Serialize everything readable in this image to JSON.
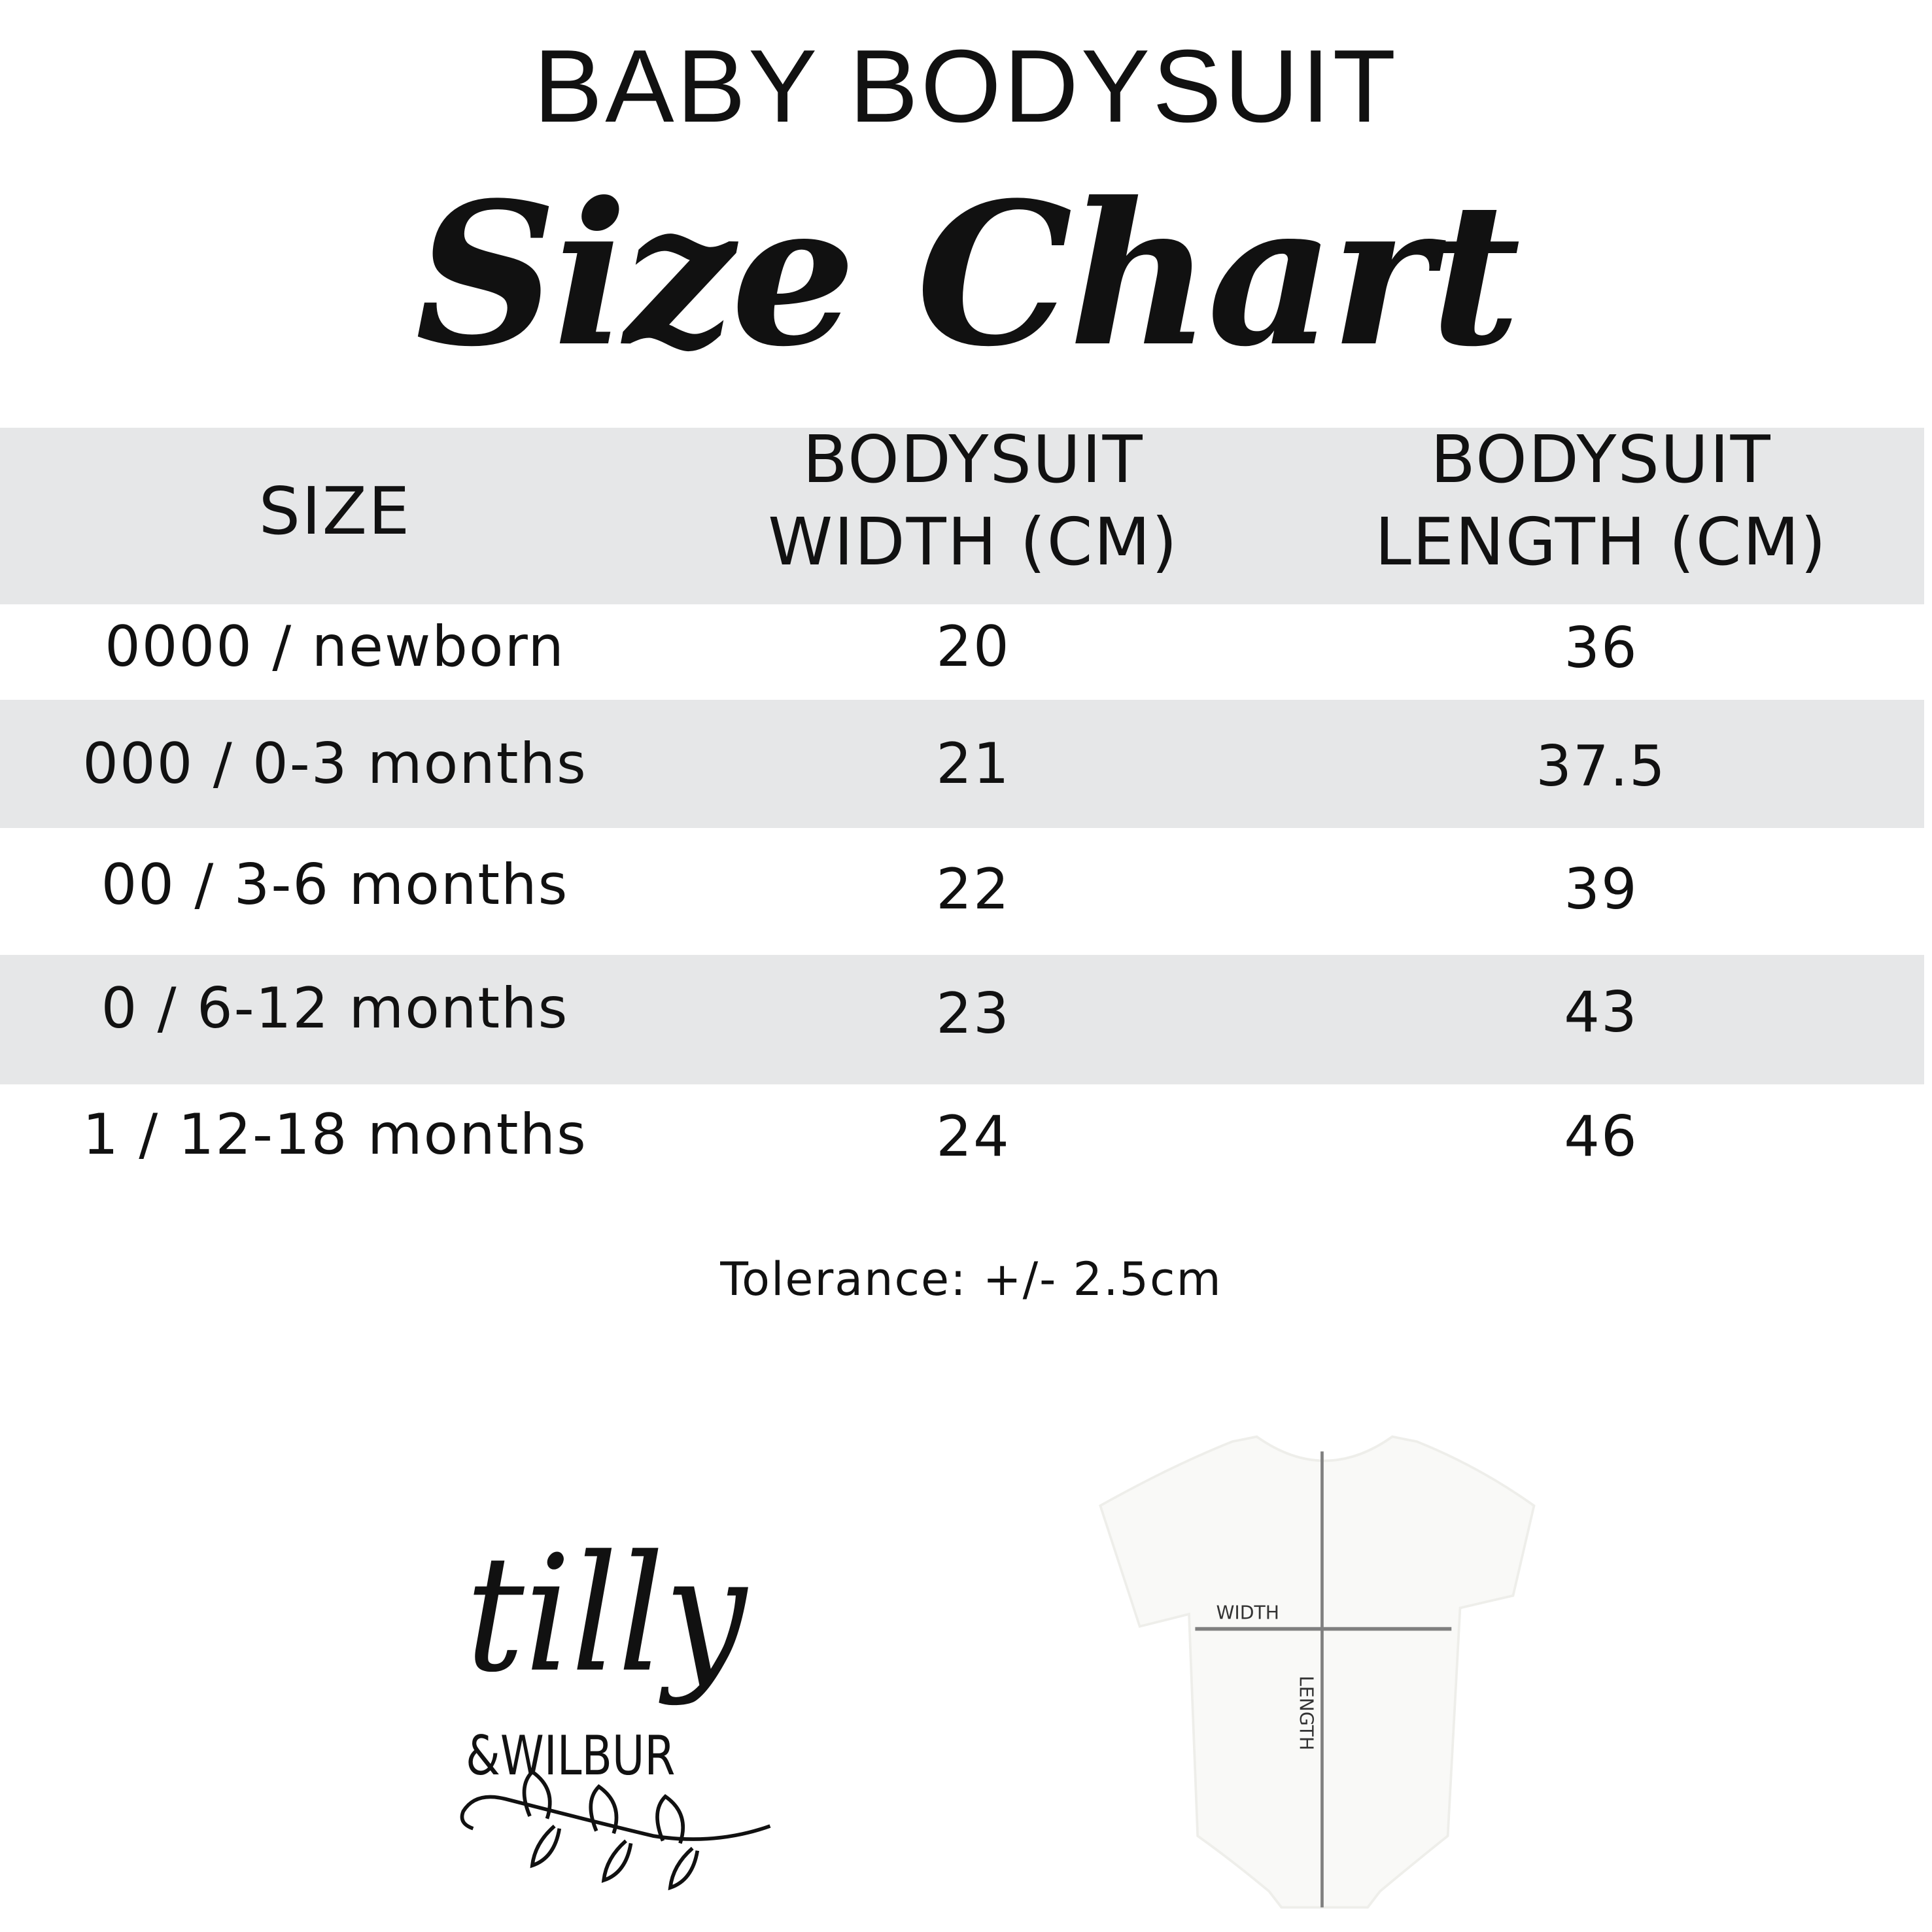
{
  "title": "BABY BODYSUIT",
  "subtitle": "Size Chart",
  "table": {
    "headers": [
      [
        "SIZE"
      ],
      [
        "BODYSUIT",
        "WIDTH (CM)"
      ],
      [
        "BODYSUIT",
        "LENGTH (CM)"
      ]
    ],
    "rows": [
      [
        "0000 / newborn",
        "20",
        "36"
      ],
      [
        "000 / 0-3 months",
        "21",
        "37.5"
      ],
      [
        "00 / 3-6 months",
        "22",
        "39"
      ],
      [
        "0 / 6-12 months",
        "23",
        "43"
      ],
      [
        "1 / 12-18 months",
        "24",
        "46"
      ]
    ],
    "band_color": "#e6e7e8"
  },
  "tolerance": "Tolerance: +/- 2.5cm",
  "logo": {
    "line1": "tilly",
    "line2": "&WILBUR"
  },
  "diagram": {
    "width_label": "WIDTH",
    "length_label": "LENGTH",
    "line_color": "#808080"
  }
}
